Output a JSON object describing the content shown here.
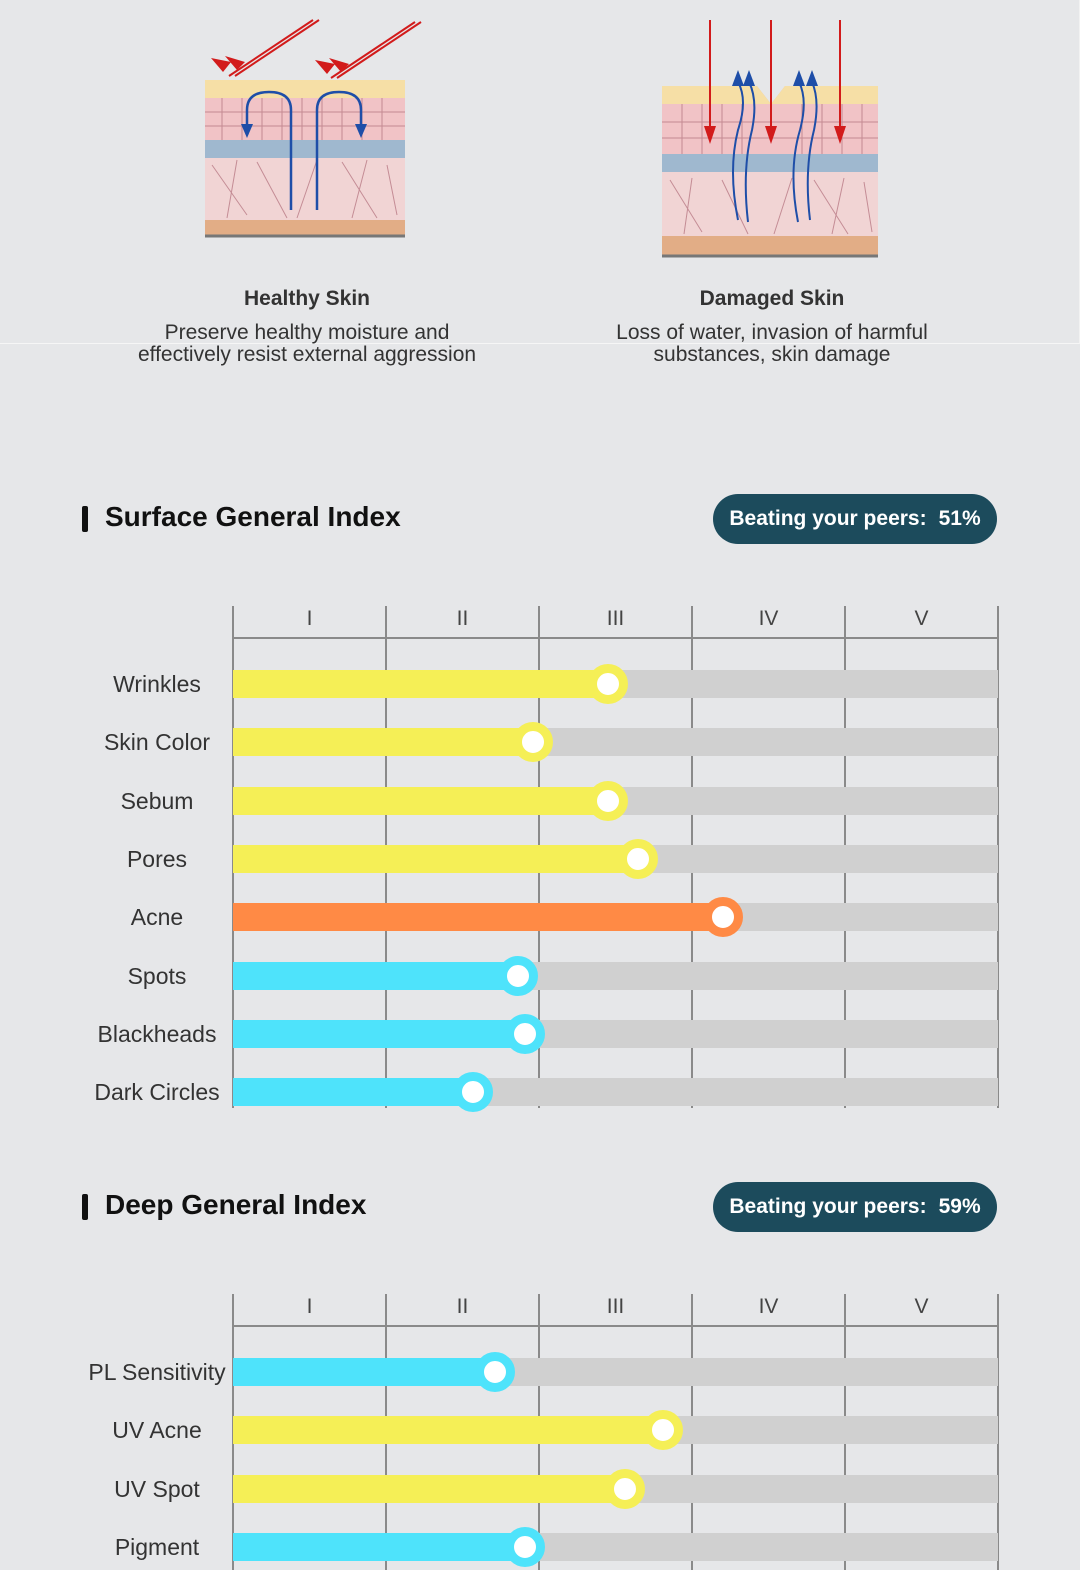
{
  "skin_comparison": {
    "healthy": {
      "title": "Healthy Skin",
      "description_line1": "Preserve healthy moisture and",
      "description_line2": "effectively resist external aggression"
    },
    "damaged": {
      "title": "Damaged Skin",
      "description_line1": "Loss of water, invasion of harmful",
      "description_line2": "substances, skin damage"
    }
  },
  "level_labels": [
    "I",
    "II",
    "III",
    "IV",
    "V"
  ],
  "colors": {
    "yellow": "#f5ef56",
    "orange": "#ff8a45",
    "cyan": "#4ee3fb",
    "track": "#d0d0d0",
    "badge": "#1c4b5c"
  },
  "surface_index": {
    "title": "Surface General Index",
    "peers_label": "Beating your peers:",
    "peers_value": "51%",
    "chart_data": {
      "type": "bar",
      "orientation": "horizontal",
      "xlim": [
        0,
        5
      ],
      "categories": [
        "Wrinkles",
        "Skin Color",
        "Sebum",
        "Pores",
        "Acne",
        "Spots",
        "Blackheads",
        "Dark Circles"
      ],
      "values": [
        2.45,
        1.96,
        2.45,
        2.65,
        3.2,
        1.86,
        1.91,
        1.57
      ],
      "bar_colors": [
        "yellow",
        "yellow",
        "yellow",
        "yellow",
        "orange",
        "cyan",
        "cyan",
        "cyan"
      ]
    }
  },
  "deep_index": {
    "title": "Deep General Index",
    "peers_label": "Beating your peers:",
    "peers_value": "59%",
    "chart_data": {
      "type": "bar",
      "orientation": "horizontal",
      "xlim": [
        0,
        5
      ],
      "categories": [
        "PL Sensitivity",
        "UV Acne",
        "UV Spot",
        "Pigment"
      ],
      "values": [
        1.71,
        2.81,
        2.56,
        1.91
      ],
      "bar_colors": [
        "cyan",
        "yellow",
        "yellow",
        "cyan"
      ]
    }
  }
}
